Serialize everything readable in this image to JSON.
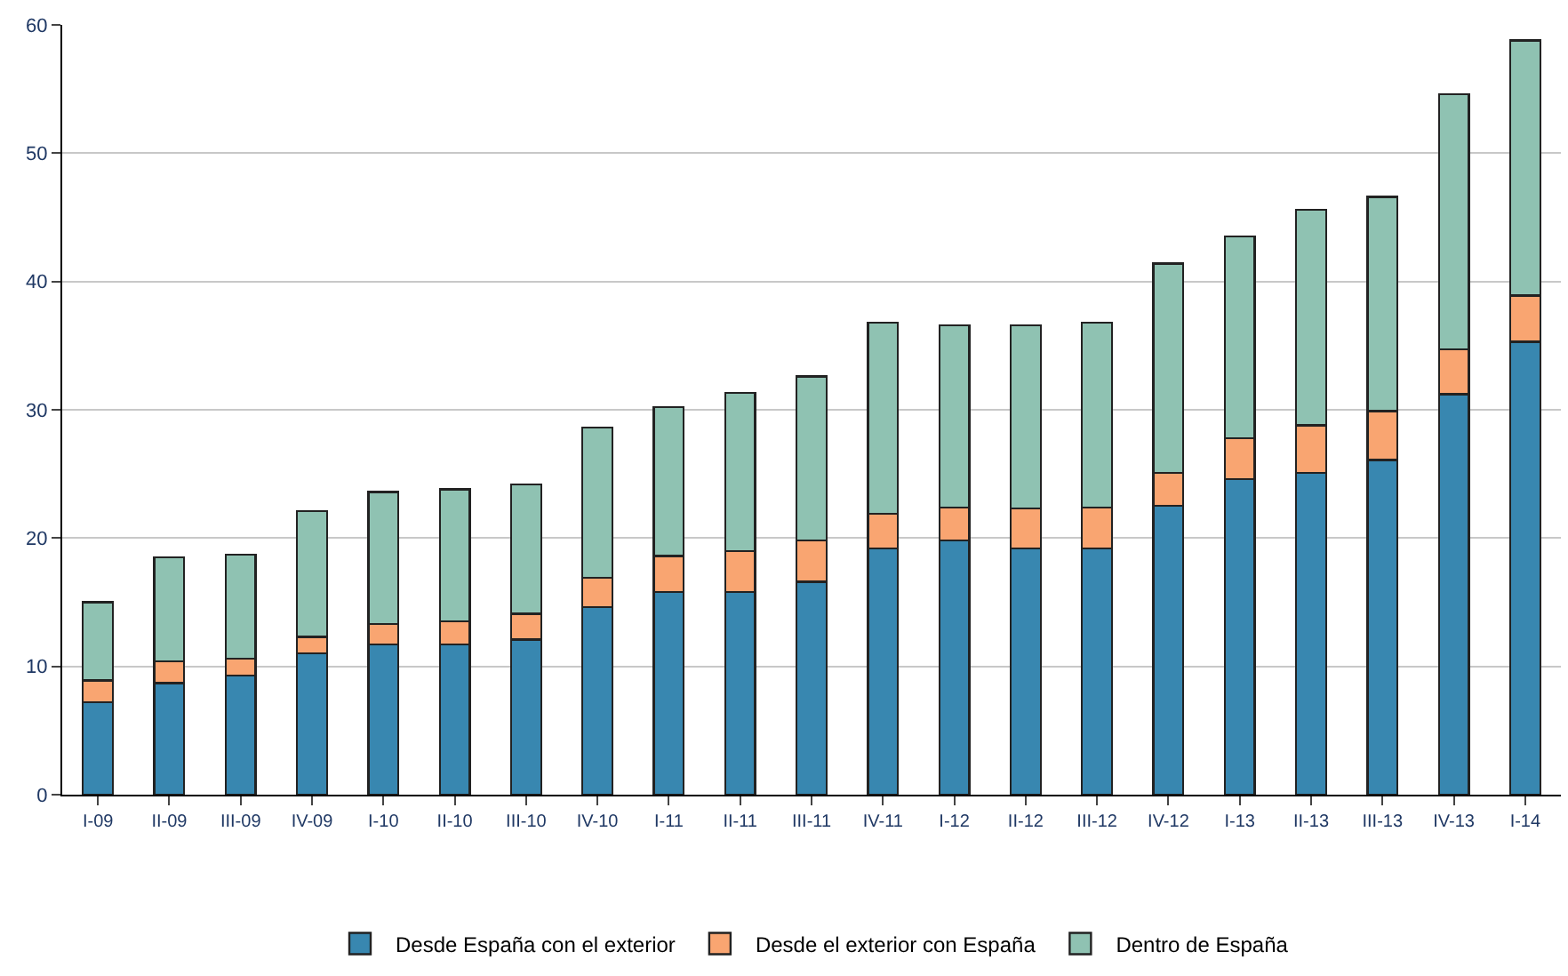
{
  "chart_data": {
    "type": "bar",
    "stacked": true,
    "categories": [
      "I-09",
      "II-09",
      "III-09",
      "IV-09",
      "I-10",
      "II-10",
      "III-10",
      "IV-10",
      "I-11",
      "II-11",
      "III-11",
      "IV-11",
      "I-12",
      "II-12",
      "III-12",
      "IV-12",
      "I-13",
      "II-13",
      "III-13",
      "IV-13",
      "I-14"
    ],
    "series": [
      {
        "name": "Desde España con el exterior",
        "color": "#3887b0",
        "values": [
          7.2,
          8.7,
          9.3,
          11.0,
          11.7,
          11.7,
          12.1,
          14.6,
          15.8,
          15.8,
          16.6,
          19.2,
          19.8,
          19.2,
          19.2,
          22.5,
          24.6,
          25.1,
          26.1,
          31.2,
          35.3
        ]
      },
      {
        "name": "Desde el exterior con España",
        "color": "#f9a571",
        "values": [
          1.7,
          1.7,
          1.3,
          1.3,
          1.6,
          1.8,
          2.0,
          2.3,
          2.8,
          3.2,
          3.2,
          2.7,
          2.6,
          3.1,
          3.2,
          2.6,
          3.2,
          3.7,
          3.8,
          3.5,
          3.6
        ]
      },
      {
        "name": "Dentro de España",
        "color": "#8fc2b2",
        "values": [
          6.1,
          8.1,
          8.1,
          9.8,
          10.3,
          10.3,
          10.1,
          11.7,
          11.6,
          12.3,
          12.8,
          14.9,
          14.2,
          14.3,
          14.4,
          16.3,
          15.7,
          16.8,
          16.7,
          19.9,
          19.9
        ]
      }
    ],
    "ylim": [
      0,
      60
    ],
    "yticks": [
      0,
      10,
      20,
      30,
      40,
      50,
      60
    ],
    "grid": "y",
    "legend": "bottom"
  }
}
